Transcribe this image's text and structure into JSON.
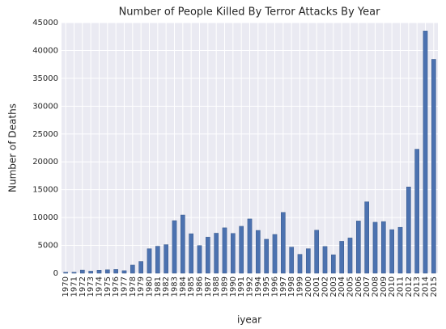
{
  "chart_data": {
    "type": "bar",
    "title": "Number of People Killed By Terror Attacks By Year",
    "x_label": "iyear",
    "y_label": "Number of Deaths",
    "categories": [
      "1970",
      "1971",
      "1972",
      "1973",
      "1974",
      "1975",
      "1976",
      "1977",
      "1978",
      "1979",
      "1980",
      "1981",
      "1982",
      "1983",
      "1984",
      "1985",
      "1986",
      "1987",
      "1988",
      "1989",
      "1990",
      "1991",
      "1992",
      "1994",
      "1995",
      "1996",
      "1997",
      "1998",
      "1999",
      "2000",
      "2001",
      "2002",
      "2003",
      "2004",
      "2005",
      "2006",
      "2007",
      "2008",
      "2009",
      "2010",
      "2011",
      "2012",
      "2013",
      "2014",
      "2015"
    ],
    "values": [
      174,
      173,
      566,
      370,
      539,
      617,
      674,
      456,
      1459,
      2100,
      4400,
      4851,
      5136,
      9444,
      10450,
      7094,
      4976,
      6482,
      7189,
      8152,
      7148,
      8429,
      9742,
      7690,
      6103,
      6966,
      10924,
      4688,
      3393,
      4403,
      7729,
      4805,
      3317,
      5743,
      6331,
      9380,
      12824,
      9157,
      9273,
      7827,
      8246,
      15497,
      22273,
      43500,
      38400
    ],
    "color": "#4c72b0",
    "ylim": [
      0,
      45000
    ],
    "yticks": [
      0,
      5000,
      10000,
      15000,
      20000,
      25000,
      30000,
      35000,
      40000,
      45000
    ],
    "grid": true
  }
}
